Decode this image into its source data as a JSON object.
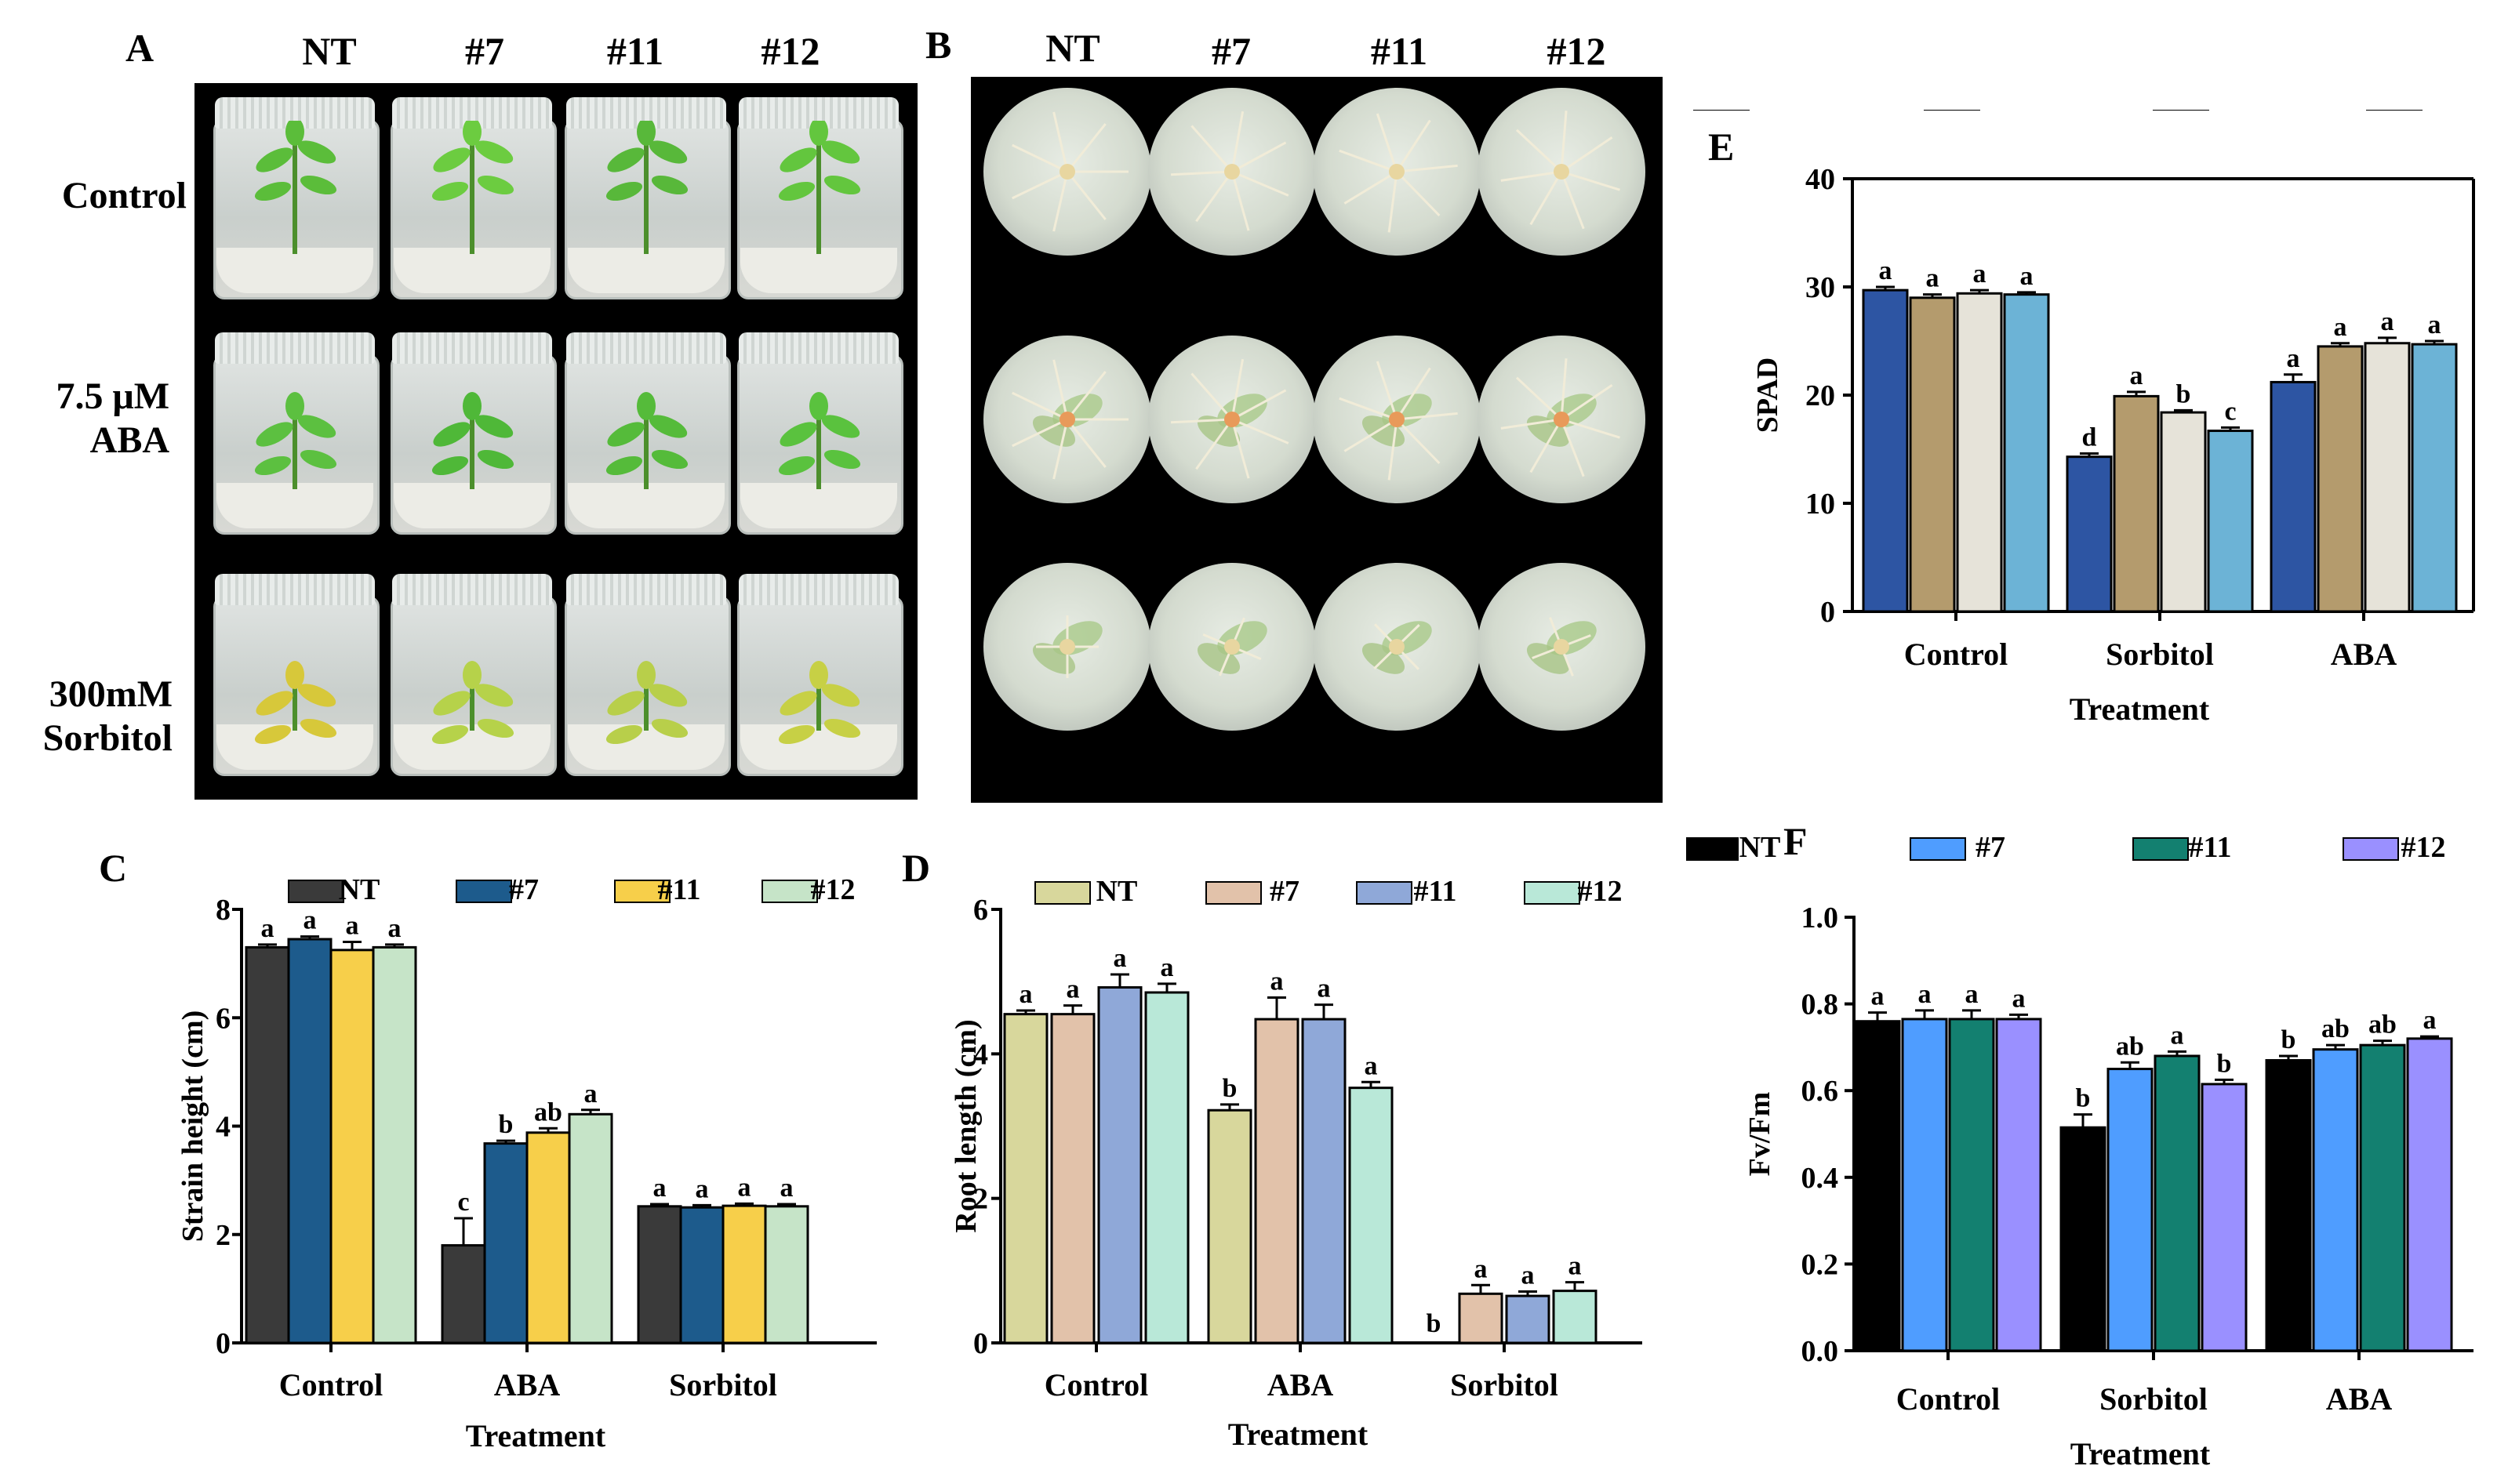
{
  "panel_labels": [
    "A",
    "B",
    "C",
    "D",
    "E",
    "F"
  ],
  "photo_panels": {
    "columns": [
      "NT",
      "#7",
      "#11",
      "#12"
    ],
    "rows": [
      "Control",
      "7.5 μM ABA",
      "300mM Sorbitol"
    ],
    "row_lines": [
      [
        "Control"
      ],
      [
        "7.5 μM",
        "ABA"
      ],
      [
        "300mM",
        "Sorbitol"
      ]
    ]
  },
  "colors": {
    "C": [
      "#3a3a3a",
      "#1d5b8c",
      "#f7cf4a",
      "#c6e4c8"
    ],
    "D": [
      "#d8d79c",
      "#e2c2aa",
      "#8fa8d8",
      "#b9e8d8"
    ],
    "E": [
      "#2d55a3",
      "#b49b6d",
      "#e6e3d9",
      "#6cb3d6"
    ],
    "F": [
      "#000000",
      "#4f9dff",
      "#138070",
      "#9a90ff"
    ]
  },
  "chart_data": [
    {
      "id": "C",
      "type": "bar",
      "categories": [
        "Control",
        "ABA",
        "Sorbitol"
      ],
      "xlabel": "Treatment",
      "ylabel": "Strain height (cm)",
      "ylim": [
        0,
        8
      ],
      "yticks": [
        "0",
        "2",
        "4",
        "6",
        "8"
      ],
      "legend": "top",
      "series": [
        {
          "name": "NT",
          "values": [
            7.3,
            1.8,
            2.52
          ],
          "errors": [
            0.05,
            0.5,
            0.04
          ],
          "letters": [
            "a",
            "c",
            "a"
          ]
        },
        {
          "name": "#7",
          "values": [
            7.45,
            3.68,
            2.5
          ],
          "errors": [
            0.05,
            0.05,
            0.04
          ],
          "letters": [
            "a",
            "b",
            "a"
          ]
        },
        {
          "name": "#11",
          "values": [
            7.25,
            3.88,
            2.53
          ],
          "errors": [
            0.15,
            0.08,
            0.04
          ],
          "letters": [
            "a",
            "ab",
            "a"
          ]
        },
        {
          "name": "#12",
          "values": [
            7.3,
            4.22,
            2.52
          ],
          "errors": [
            0.05,
            0.08,
            0.04
          ],
          "letters": [
            "a",
            "a",
            "a"
          ]
        }
      ]
    },
    {
      "id": "D",
      "type": "bar",
      "categories": [
        "Control",
        "ABA",
        "Sorbitol"
      ],
      "xlabel": "Treatment",
      "ylabel": "Root length (cm)",
      "ylim": [
        0,
        6
      ],
      "yticks": [
        "0",
        "2",
        "4",
        "6"
      ],
      "legend": "top",
      "series": [
        {
          "name": "NT",
          "values": [
            4.55,
            3.22,
            0.0
          ],
          "errors": [
            0.05,
            0.08,
            0.0
          ],
          "letters": [
            "a",
            "b",
            "b"
          ]
        },
        {
          "name": "#7",
          "values": [
            4.55,
            4.48,
            0.68
          ],
          "errors": [
            0.12,
            0.3,
            0.12
          ],
          "letters": [
            "a",
            "a",
            "a"
          ]
        },
        {
          "name": "#11",
          "values": [
            4.92,
            4.48,
            0.65
          ],
          "errors": [
            0.18,
            0.2,
            0.06
          ],
          "letters": [
            "a",
            "a",
            "a"
          ]
        },
        {
          "name": "#12",
          "values": [
            4.85,
            3.53,
            0.72
          ],
          "errors": [
            0.12,
            0.08,
            0.12
          ],
          "letters": [
            "a",
            "a",
            "a"
          ]
        }
      ]
    },
    {
      "id": "E",
      "type": "bar",
      "categories": [
        "Control",
        "Sorbitol",
        "ABA"
      ],
      "xlabel": "Treatment",
      "ylabel": "SPAD",
      "ylim": [
        0,
        40
      ],
      "yticks": [
        "0",
        "10",
        "20",
        "30",
        "40"
      ],
      "legend": "top",
      "series": [
        {
          "name": "NT",
          "values": [
            29.7,
            14.3,
            21.2
          ],
          "errors": [
            0.3,
            0.3,
            0.7
          ],
          "letters": [
            "a",
            "d",
            "a"
          ]
        },
        {
          "name": "#7",
          "values": [
            29.0,
            19.9,
            24.5
          ],
          "errors": [
            0.3,
            0.4,
            0.3
          ],
          "letters": [
            "a",
            "a",
            "a"
          ]
        },
        {
          "name": "#11",
          "values": [
            29.4,
            18.4,
            24.8
          ],
          "errors": [
            0.3,
            0.2,
            0.5
          ],
          "letters": [
            "a",
            "b",
            "a"
          ]
        },
        {
          "name": "#12",
          "values": [
            29.3,
            16.7,
            24.7
          ],
          "errors": [
            0.2,
            0.3,
            0.3
          ],
          "letters": [
            "a",
            "c",
            "a"
          ]
        }
      ]
    },
    {
      "id": "F",
      "type": "bar",
      "categories": [
        "Control",
        "Sorbitol",
        "ABA"
      ],
      "xlabel": "Treatment",
      "ylabel": "Fv/Fm",
      "ylim": [
        0,
        1.0
      ],
      "yticks": [
        "0.0",
        "0.2",
        "0.4",
        "0.6",
        "0.8",
        "1.0"
      ],
      "legend": "top",
      "series": [
        {
          "name": "NT",
          "values": [
            0.76,
            0.515,
            0.67
          ],
          "errors": [
            0.02,
            0.03,
            0.01
          ],
          "letters": [
            "a",
            "b",
            "b"
          ]
        },
        {
          "name": "#7",
          "values": [
            0.765,
            0.65,
            0.695
          ],
          "errors": [
            0.02,
            0.015,
            0.01
          ],
          "letters": [
            "a",
            "ab",
            "ab"
          ]
        },
        {
          "name": "#11",
          "values": [
            0.765,
            0.68,
            0.705
          ],
          "errors": [
            0.02,
            0.01,
            0.01
          ],
          "letters": [
            "a",
            "a",
            "ab"
          ]
        },
        {
          "name": "#12",
          "values": [
            0.765,
            0.615,
            0.72
          ],
          "errors": [
            0.01,
            0.01,
            0.005
          ],
          "letters": [
            "a",
            "b",
            "a"
          ]
        }
      ]
    }
  ]
}
